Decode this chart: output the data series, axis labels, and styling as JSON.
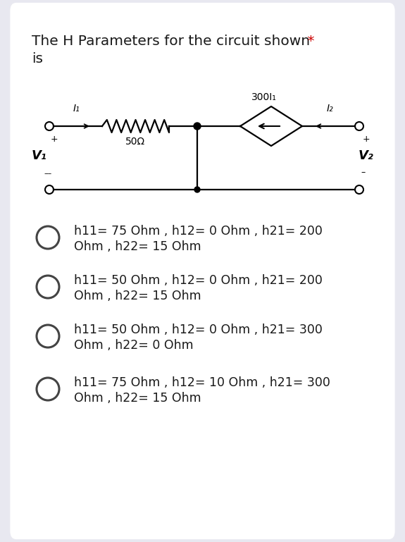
{
  "title_line1": "The H Parameters for the circuit shown",
  "title_asterisk": "*",
  "title_line2": "is",
  "bg_color": "#e8e8f0",
  "card_color": "#ffffff",
  "options": [
    [
      "h11= 75 Ohm , h12= 0 Ohm , h21= 200",
      "Ohm , h22= 15 Ohm"
    ],
    [
      "h11= 50 Ohm , h12= 0 Ohm , h21= 200",
      "Ohm , h22= 15 Ohm"
    ],
    [
      "h11= 50 Ohm , h12= 0 Ohm , h21= 300",
      "Ohm , h22= 0 Ohm"
    ],
    [
      "h11= 75 Ohm , h12= 10 Ohm , h21= 300",
      "Ohm , h22= 15 Ohm"
    ]
  ],
  "circuit": {
    "resistor_label": "50Ω",
    "source_label": "300I₁",
    "I1_label": "I₁",
    "I2_label": "I₂",
    "V1_label": "V₁",
    "V2_label": "V₂"
  }
}
